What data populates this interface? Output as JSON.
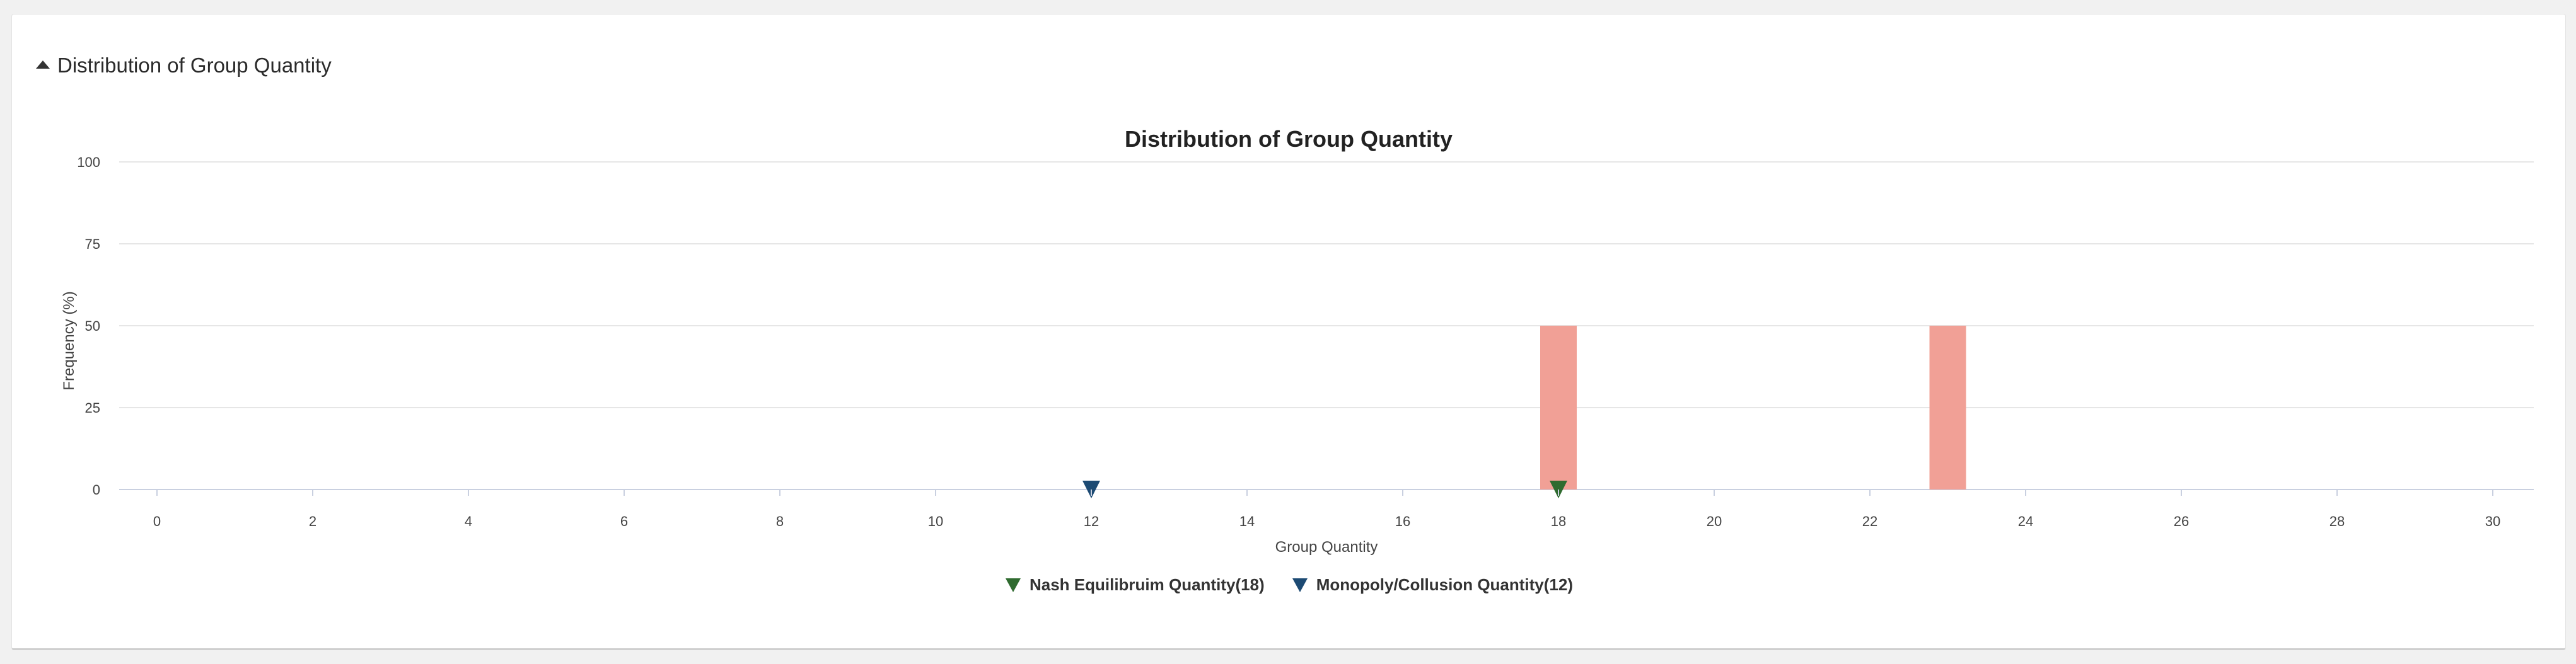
{
  "panel": {
    "header_title": "Distribution of Group Quantity"
  },
  "chart_data": {
    "type": "bar",
    "title": "Distribution of Group Quantity",
    "xlabel": "Group Quantity",
    "ylabel": "Frequency (%)",
    "xlim": [
      0,
      30
    ],
    "ylim": [
      0,
      100
    ],
    "x_ticks": [
      "0",
      "2",
      "4",
      "6",
      "8",
      "10",
      "12",
      "14",
      "16",
      "18",
      "20",
      "22",
      "24",
      "26",
      "28",
      "30"
    ],
    "y_ticks": [
      "0",
      "25",
      "50",
      "75",
      "100"
    ],
    "grid": true,
    "bars": [
      {
        "x": 18,
        "y": 50
      },
      {
        "x": 23,
        "y": 50
      }
    ],
    "markers": [
      {
        "name": "Nash Equilibruim Quantity(18)",
        "x": 18,
        "color": "#2f6b2f"
      },
      {
        "name": "Monopoly/Collusion Quantity(12)",
        "x": 12,
        "color": "#1c4a73"
      }
    ],
    "bar_color": "#f1a096",
    "legend_position": "bottom"
  }
}
